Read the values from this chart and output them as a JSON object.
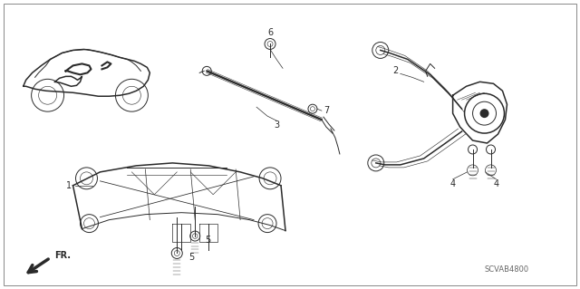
{
  "background_color": "#ffffff",
  "line_color": "#2a2a2a",
  "diagram_code": "SCVAB4800",
  "figsize": [
    6.4,
    3.19
  ],
  "dpi": 100,
  "border_lw": 0.6,
  "part_lw": 0.7,
  "thick_lw": 1.1,
  "label_fs": 7,
  "code_fs": 6,
  "fr_fs": 7
}
